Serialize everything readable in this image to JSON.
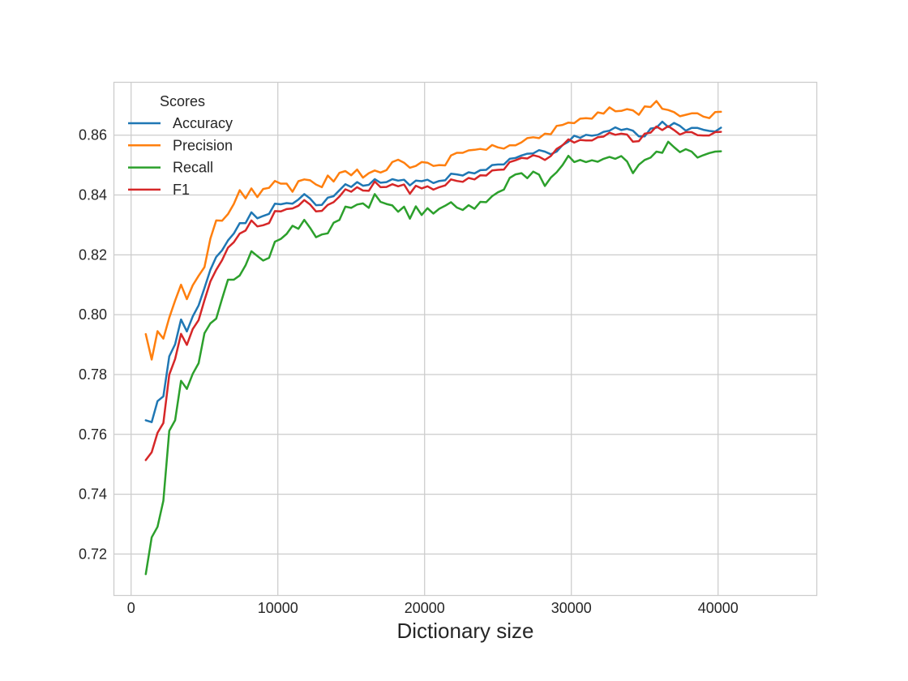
{
  "chart_data": {
    "type": "line",
    "title": "",
    "xlabel": "Dictionary size",
    "ylabel": "",
    "xlim": [
      -1200,
      46700
    ],
    "ylim": [
      0.7063,
      0.8778
    ],
    "xticks": [
      0,
      10000,
      20000,
      30000,
      40000
    ],
    "xtick_labels": [
      "0",
      "10000",
      "20000",
      "30000",
      "40000"
    ],
    "yticks": [
      0.72,
      0.74,
      0.76,
      0.78,
      0.8,
      0.82,
      0.84,
      0.86
    ],
    "ytick_labels": [
      "0.72",
      "0.74",
      "0.76",
      "0.78",
      "0.80",
      "0.82",
      "0.84",
      "0.86"
    ],
    "grid": true,
    "legend": {
      "title": "Scores",
      "position": "top-left"
    },
    "x_start": 1000,
    "x_step": 400,
    "series": [
      {
        "name": "Accuracy",
        "color": "#1f77b4",
        "values": [
          0.7647,
          0.7641,
          0.7711,
          0.7727,
          0.7861,
          0.7901,
          0.7984,
          0.7944,
          0.7994,
          0.8031,
          0.8089,
          0.815,
          0.8193,
          0.8215,
          0.8248,
          0.8271,
          0.8306,
          0.8306,
          0.8342,
          0.8322,
          0.833,
          0.8337,
          0.8371,
          0.8369,
          0.8373,
          0.8371,
          0.8385,
          0.8403,
          0.8388,
          0.8366,
          0.8367,
          0.8391,
          0.8396,
          0.8416,
          0.8436,
          0.8427,
          0.8443,
          0.8431,
          0.8434,
          0.8453,
          0.8441,
          0.8443,
          0.8453,
          0.8448,
          0.8451,
          0.8432,
          0.8448,
          0.8446,
          0.8451,
          0.844,
          0.8447,
          0.8449,
          0.8471,
          0.8469,
          0.8465,
          0.8476,
          0.8472,
          0.8483,
          0.8484,
          0.85,
          0.8502,
          0.8502,
          0.8521,
          0.8524,
          0.8532,
          0.8538,
          0.8539,
          0.855,
          0.8545,
          0.8536,
          0.8545,
          0.8567,
          0.8578,
          0.8598,
          0.8591,
          0.8601,
          0.8598,
          0.8601,
          0.8611,
          0.8615,
          0.8626,
          0.8617,
          0.8621,
          0.8615,
          0.8596,
          0.8596,
          0.8622,
          0.8625,
          0.8645,
          0.8627,
          0.8641,
          0.8631,
          0.8615,
          0.8624,
          0.8624,
          0.8618,
          0.8614,
          0.8612,
          0.8625
        ]
      },
      {
        "name": "Precision",
        "color": "#ff7f0e",
        "values": [
          0.7935,
          0.785,
          0.7945,
          0.792,
          0.799,
          0.8047,
          0.81,
          0.8052,
          0.8098,
          0.813,
          0.8159,
          0.8254,
          0.8315,
          0.8314,
          0.8336,
          0.837,
          0.8416,
          0.8389,
          0.8422,
          0.8393,
          0.842,
          0.8424,
          0.8447,
          0.8438,
          0.8438,
          0.8411,
          0.8446,
          0.8452,
          0.8449,
          0.8435,
          0.8426,
          0.8465,
          0.8445,
          0.8474,
          0.848,
          0.8466,
          0.8485,
          0.8458,
          0.8473,
          0.8482,
          0.8475,
          0.8483,
          0.851,
          0.8518,
          0.8508,
          0.8491,
          0.8497,
          0.851,
          0.8508,
          0.8497,
          0.85,
          0.8499,
          0.8532,
          0.8541,
          0.8541,
          0.8549,
          0.8551,
          0.8554,
          0.8551,
          0.8567,
          0.8559,
          0.8555,
          0.8566,
          0.8566,
          0.8576,
          0.859,
          0.8593,
          0.859,
          0.8605,
          0.8603,
          0.8631,
          0.8634,
          0.8642,
          0.864,
          0.8655,
          0.8657,
          0.8655,
          0.8676,
          0.8672,
          0.8693,
          0.868,
          0.8681,
          0.8687,
          0.8683,
          0.8668,
          0.8696,
          0.8694,
          0.8714,
          0.8688,
          0.8684,
          0.8677,
          0.8663,
          0.8668,
          0.8673,
          0.8673,
          0.8662,
          0.8657,
          0.8677,
          0.8678
        ]
      },
      {
        "name": "Recall",
        "color": "#2ca02c",
        "values": [
          0.7133,
          0.7256,
          0.7291,
          0.7378,
          0.7612,
          0.7647,
          0.7779,
          0.7752,
          0.7802,
          0.7838,
          0.7938,
          0.7971,
          0.7987,
          0.8053,
          0.8117,
          0.8117,
          0.8131,
          0.8165,
          0.8212,
          0.8196,
          0.8181,
          0.819,
          0.8244,
          0.8253,
          0.827,
          0.8297,
          0.8287,
          0.8317,
          0.829,
          0.8259,
          0.8268,
          0.8272,
          0.8307,
          0.8317,
          0.8361,
          0.8357,
          0.8368,
          0.8372,
          0.8357,
          0.8403,
          0.8377,
          0.837,
          0.8365,
          0.8344,
          0.8361,
          0.8321,
          0.8362,
          0.8333,
          0.8356,
          0.8338,
          0.8354,
          0.8364,
          0.8376,
          0.8358,
          0.835,
          0.8366,
          0.8354,
          0.8377,
          0.8376,
          0.8396,
          0.8409,
          0.8418,
          0.8457,
          0.8469,
          0.8473,
          0.8456,
          0.8478,
          0.8468,
          0.843,
          0.8458,
          0.8476,
          0.85,
          0.8531,
          0.851,
          0.8517,
          0.851,
          0.8516,
          0.8511,
          0.8521,
          0.8527,
          0.8521,
          0.853,
          0.8512,
          0.8473,
          0.8501,
          0.8517,
          0.8525,
          0.8545,
          0.8541,
          0.8578,
          0.856,
          0.8543,
          0.8553,
          0.8545,
          0.8525,
          0.8533,
          0.854,
          0.8545,
          0.8546
        ]
      },
      {
        "name": "F1",
        "color": "#d62728",
        "values": [
          0.7514,
          0.754,
          0.7605,
          0.7638,
          0.78,
          0.7852,
          0.7936,
          0.7899,
          0.7952,
          0.7982,
          0.8048,
          0.8111,
          0.815,
          0.8182,
          0.8224,
          0.8242,
          0.8271,
          0.8281,
          0.8315,
          0.8295,
          0.8299,
          0.8306,
          0.8346,
          0.8345,
          0.8353,
          0.8355,
          0.8364,
          0.8383,
          0.8368,
          0.8345,
          0.8347,
          0.8367,
          0.8376,
          0.8395,
          0.8419,
          0.8411,
          0.8426,
          0.8415,
          0.8414,
          0.8445,
          0.8426,
          0.8427,
          0.8436,
          0.8429,
          0.8435,
          0.8404,
          0.8431,
          0.8422,
          0.8429,
          0.8418,
          0.8426,
          0.8432,
          0.8452,
          0.8447,
          0.8444,
          0.8457,
          0.8452,
          0.8466,
          0.8465,
          0.8482,
          0.8484,
          0.8485,
          0.851,
          0.8516,
          0.8524,
          0.8522,
          0.8533,
          0.8528,
          0.8517,
          0.853,
          0.8554,
          0.8566,
          0.8586,
          0.8575,
          0.8584,
          0.8582,
          0.8582,
          0.8593,
          0.8595,
          0.8608,
          0.8601,
          0.8605,
          0.8602,
          0.8578,
          0.858,
          0.8605,
          0.8608,
          0.8629,
          0.8617,
          0.863,
          0.8617,
          0.8602,
          0.861,
          0.861,
          0.86,
          0.8599,
          0.8599,
          0.861,
          0.8611
        ]
      }
    ]
  }
}
